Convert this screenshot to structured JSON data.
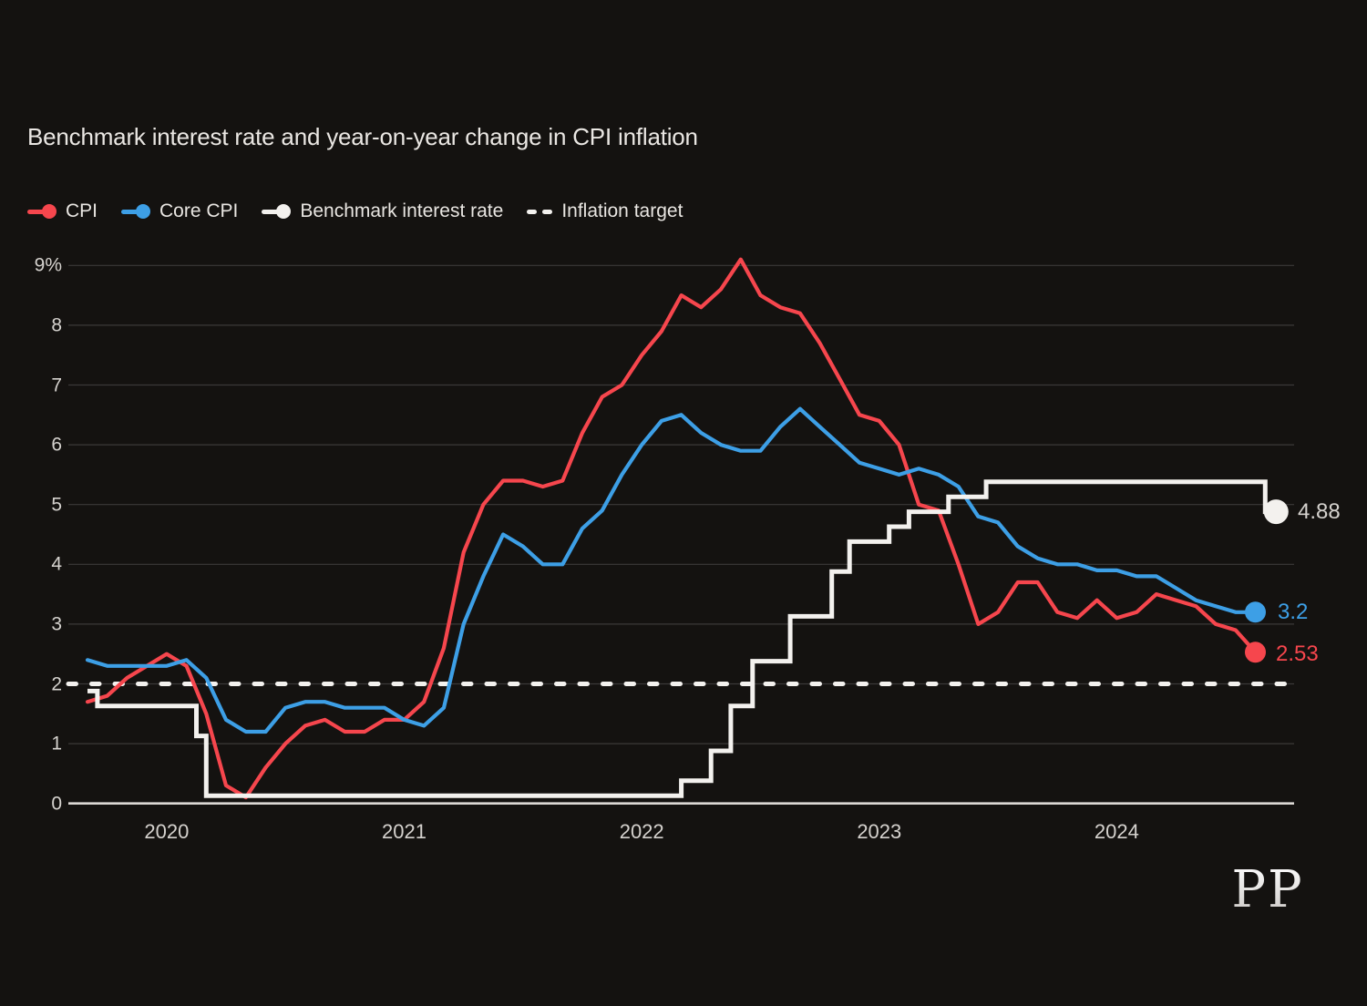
{
  "title": "Benchmark interest rate and year-on-year change in CPI inflation",
  "logo_text": "PP",
  "colors": {
    "background": "#141210",
    "cpi": "#f6464d",
    "core_cpi": "#3d9fe6",
    "benchmark": "#f3f1ee",
    "target": "#f3f1ee",
    "grid": "#3b3938",
    "axis_line": "#dcd9d5",
    "tick_text": "#d5d2ce",
    "title_text": "#eae7e3",
    "legend_text": "#e9e6e2"
  },
  "legend": {
    "items": [
      {
        "label": "CPI",
        "series": "cpi",
        "marker": "line-dot"
      },
      {
        "label": "Core CPI",
        "series": "core_cpi",
        "marker": "line-dot"
      },
      {
        "label": "Benchmark interest rate",
        "series": "benchmark",
        "marker": "line-dot"
      },
      {
        "label": "Inflation target",
        "series": "target",
        "marker": "dashes"
      }
    ]
  },
  "y_axis": {
    "ticks": [
      "9%",
      "8",
      "7",
      "6",
      "5",
      "4",
      "3",
      "2",
      "1",
      "0"
    ],
    "min": 0,
    "max": 9
  },
  "x_axis": {
    "ticks": [
      "2020",
      "2021",
      "2022",
      "2023",
      "2024"
    ]
  },
  "chart_data": {
    "type": "line",
    "title": "Benchmark interest rate and year-on-year change in CPI inflation",
    "x_unit": "month",
    "x_start": "2019-09",
    "x_end": "2024-08",
    "ylim": [
      0,
      9
    ],
    "grid": "horizontal",
    "legend_position": "top-left",
    "target_value": 2,
    "series": [
      {
        "name": "CPI",
        "color_key": "cpi",
        "values": [
          1.7,
          1.8,
          2.1,
          2.3,
          2.5,
          2.3,
          1.5,
          0.3,
          0.1,
          0.6,
          1.0,
          1.3,
          1.4,
          1.2,
          1.2,
          1.4,
          1.4,
          1.7,
          2.6,
          4.2,
          5.0,
          5.4,
          5.4,
          5.3,
          5.4,
          6.2,
          6.8,
          7.0,
          7.5,
          7.9,
          8.5,
          8.3,
          8.6,
          9.1,
          8.5,
          8.3,
          8.2,
          7.7,
          7.1,
          6.5,
          6.4,
          6.0,
          5.0,
          4.9,
          4.0,
          3.0,
          3.2,
          3.7,
          3.7,
          3.2,
          3.1,
          3.4,
          3.1,
          3.2,
          3.5,
          3.4,
          3.3,
          3.0,
          2.9,
          2.53
        ]
      },
      {
        "name": "Core CPI",
        "color_key": "core_cpi",
        "values": [
          2.4,
          2.3,
          2.3,
          2.3,
          2.3,
          2.4,
          2.1,
          1.4,
          1.2,
          1.2,
          1.6,
          1.7,
          1.7,
          1.6,
          1.6,
          1.6,
          1.4,
          1.3,
          1.6,
          3.0,
          3.8,
          4.5,
          4.3,
          4.0,
          4.0,
          4.6,
          4.9,
          5.5,
          6.0,
          6.4,
          6.5,
          6.2,
          6.0,
          5.9,
          5.9,
          6.3,
          6.6,
          6.3,
          6.0,
          5.7,
          5.6,
          5.5,
          5.6,
          5.5,
          5.3,
          4.8,
          4.7,
          4.3,
          4.1,
          4.0,
          4.0,
          3.9,
          3.9,
          3.8,
          3.8,
          3.6,
          3.4,
          3.3,
          3.2,
          3.2
        ]
      }
    ],
    "benchmark_series": {
      "name": "Benchmark interest rate",
      "color_key": "benchmark",
      "steps": [
        {
          "t": 0.0,
          "v": 1.88
        },
        {
          "t": 0.5,
          "v": 1.63
        },
        {
          "t": 5.5,
          "v": 1.13
        },
        {
          "t": 6.0,
          "v": 0.13
        },
        {
          "t": 30.0,
          "v": 0.38
        },
        {
          "t": 31.5,
          "v": 0.88
        },
        {
          "t": 32.5,
          "v": 1.63
        },
        {
          "t": 33.6,
          "v": 2.38
        },
        {
          "t": 35.5,
          "v": 3.13
        },
        {
          "t": 37.6,
          "v": 3.88
        },
        {
          "t": 38.5,
          "v": 4.38
        },
        {
          "t": 40.5,
          "v": 4.63
        },
        {
          "t": 41.5,
          "v": 4.88
        },
        {
          "t": 43.5,
          "v": 5.13
        },
        {
          "t": 45.4,
          "v": 5.38
        },
        {
          "t": 59.5,
          "v": 4.88
        },
        {
          "t": 60.05,
          "v": 4.88
        }
      ]
    },
    "end_labels": [
      {
        "text": "4.88",
        "series": "benchmark"
      },
      {
        "text": "3.2",
        "series": "core_cpi"
      },
      {
        "text": "2.53",
        "series": "cpi"
      }
    ]
  }
}
